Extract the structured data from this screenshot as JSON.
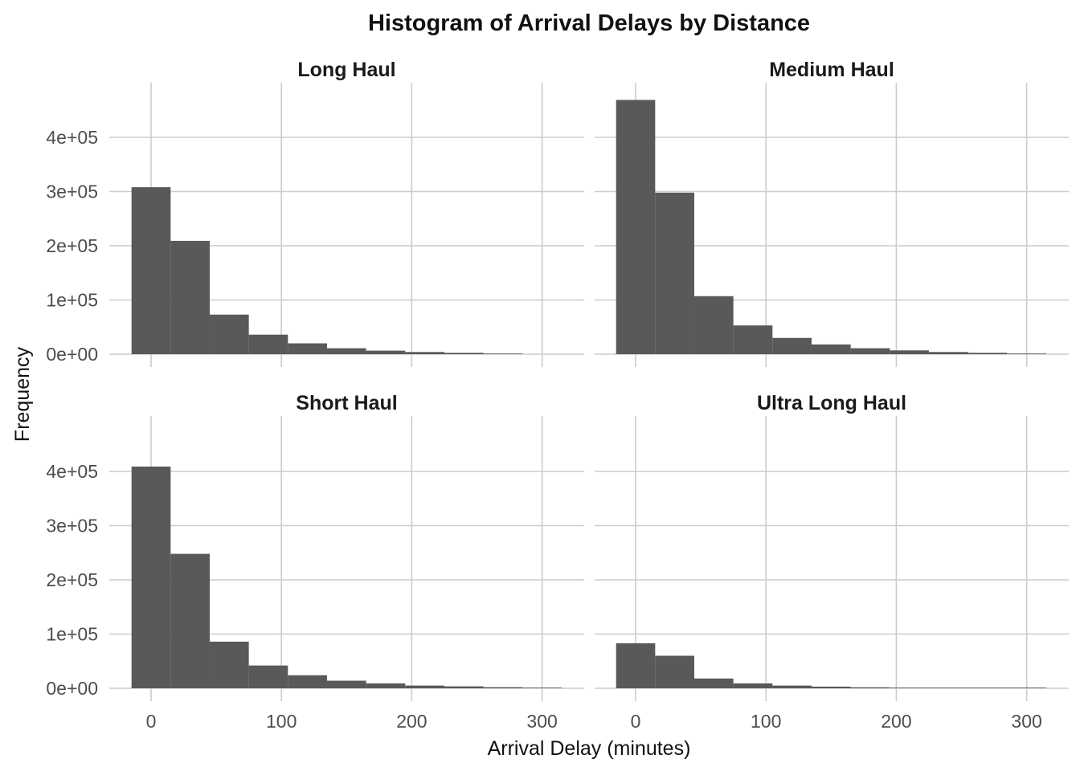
{
  "chart_data": {
    "type": "bar",
    "title": "Histogram of Arrival Delays by Distance",
    "xlabel": "Arrival Delay (minutes)",
    "ylabel": "Frequency",
    "xlim": [
      -15,
      315
    ],
    "ylim": [
      0,
      480000
    ],
    "x_ticks": [
      0,
      100,
      200,
      300
    ],
    "y_ticks": [
      0,
      100000,
      200000,
      300000,
      400000
    ],
    "x_tick_labels": [
      "0",
      "100",
      "200",
      "300"
    ],
    "y_tick_labels": [
      "0e+00",
      "1e+05",
      "2e+05",
      "3e+05",
      "4e+05"
    ],
    "bin_width": 30,
    "grid": true,
    "legend": "none",
    "bar_color": "#595959",
    "facets": [
      {
        "name": "Long Haul",
        "bins": [
          {
            "x0": -15,
            "x1": 15,
            "count": 308000
          },
          {
            "x0": 15,
            "x1": 45,
            "count": 209000
          },
          {
            "x0": 45,
            "x1": 75,
            "count": 73000
          },
          {
            "x0": 75,
            "x1": 105,
            "count": 36000
          },
          {
            "x0": 105,
            "x1": 135,
            "count": 20000
          },
          {
            "x0": 135,
            "x1": 165,
            "count": 11000
          },
          {
            "x0": 165,
            "x1": 195,
            "count": 6500
          },
          {
            "x0": 195,
            "x1": 225,
            "count": 4000
          },
          {
            "x0": 225,
            "x1": 255,
            "count": 2500
          },
          {
            "x0": 255,
            "x1": 285,
            "count": 1200
          }
        ]
      },
      {
        "name": "Medium Haul",
        "bins": [
          {
            "x0": -15,
            "x1": 15,
            "count": 469000
          },
          {
            "x0": 15,
            "x1": 45,
            "count": 298000
          },
          {
            "x0": 45,
            "x1": 75,
            "count": 107000
          },
          {
            "x0": 75,
            "x1": 105,
            "count": 53000
          },
          {
            "x0": 105,
            "x1": 135,
            "count": 30000
          },
          {
            "x0": 135,
            "x1": 165,
            "count": 18000
          },
          {
            "x0": 165,
            "x1": 195,
            "count": 11000
          },
          {
            "x0": 195,
            "x1": 225,
            "count": 7000
          },
          {
            "x0": 225,
            "x1": 255,
            "count": 4000
          },
          {
            "x0": 255,
            "x1": 285,
            "count": 2500
          },
          {
            "x0": 285,
            "x1": 315,
            "count": 1200
          }
        ]
      },
      {
        "name": "Short Haul",
        "bins": [
          {
            "x0": -15,
            "x1": 15,
            "count": 409000
          },
          {
            "x0": 15,
            "x1": 45,
            "count": 248000
          },
          {
            "x0": 45,
            "x1": 75,
            "count": 86000
          },
          {
            "x0": 75,
            "x1": 105,
            "count": 42000
          },
          {
            "x0": 105,
            "x1": 135,
            "count": 24000
          },
          {
            "x0": 135,
            "x1": 165,
            "count": 14000
          },
          {
            "x0": 165,
            "x1": 195,
            "count": 9000
          },
          {
            "x0": 195,
            "x1": 225,
            "count": 5000
          },
          {
            "x0": 225,
            "x1": 255,
            "count": 3500
          },
          {
            "x0": 255,
            "x1": 285,
            "count": 2000
          },
          {
            "x0": 285,
            "x1": 315,
            "count": 1000
          }
        ]
      },
      {
        "name": "Ultra Long Haul",
        "bins": [
          {
            "x0": -15,
            "x1": 15,
            "count": 83000
          },
          {
            "x0": 15,
            "x1": 45,
            "count": 60000
          },
          {
            "x0": 45,
            "x1": 75,
            "count": 18000
          },
          {
            "x0": 75,
            "x1": 105,
            "count": 9000
          },
          {
            "x0": 105,
            "x1": 135,
            "count": 5000
          },
          {
            "x0": 135,
            "x1": 165,
            "count": 3000
          },
          {
            "x0": 165,
            "x1": 195,
            "count": 1800
          },
          {
            "x0": 195,
            "x1": 225,
            "count": 1000
          },
          {
            "x0": 225,
            "x1": 255,
            "count": 600
          },
          {
            "x0": 255,
            "x1": 285,
            "count": 300
          },
          {
            "x0": 285,
            "x1": 315,
            "count": 150
          }
        ]
      }
    ]
  }
}
